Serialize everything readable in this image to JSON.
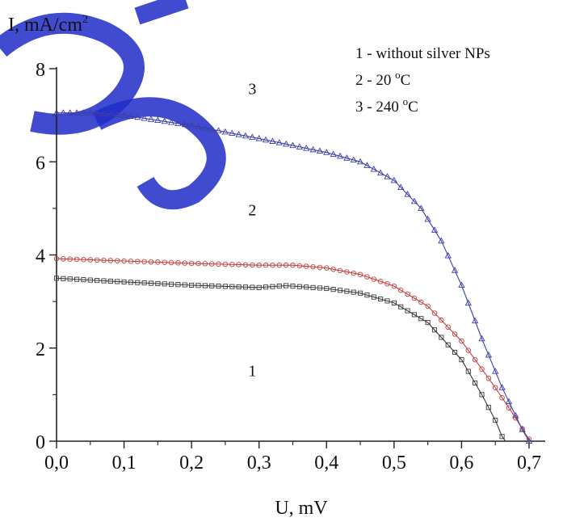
{
  "chart_data": {
    "type": "line",
    "title": "",
    "xlabel": "U, mV",
    "ylabel": "I, mA/cm",
    "ylabel_superscript": "2",
    "xlim": [
      0.0,
      0.7
    ],
    "ylim": [
      0,
      8
    ],
    "x_ticks": [
      "0,0",
      "0,1",
      "0,2",
      "0,3",
      "0,4",
      "0,5",
      "0,6",
      "0,7"
    ],
    "y_ticks": [
      "0",
      "2",
      "4",
      "6",
      "8"
    ],
    "grid": false,
    "legend": {
      "placement": "top-right",
      "entries": [
        {
          "text": "1 - without silver NPs"
        },
        {
          "text": "2 - 20 ",
          "sup": "o",
          "tail": "C"
        },
        {
          "text": "3 - 240 ",
          "sup": "o",
          "tail": "C"
        }
      ]
    },
    "series": [
      {
        "name": "1",
        "color": "#3a3a3a",
        "marker": "square",
        "label_at": [
          0.29,
          1.4
        ],
        "x": [
          0.0,
          0.1,
          0.2,
          0.3,
          0.34,
          0.4,
          0.45,
          0.5,
          0.55,
          0.6,
          0.63,
          0.65,
          0.66,
          0.665
        ],
        "y": [
          3.5,
          3.42,
          3.35,
          3.3,
          3.34,
          3.28,
          3.18,
          2.97,
          2.55,
          1.75,
          1.0,
          0.45,
          0.1,
          0.0
        ]
      },
      {
        "name": "2",
        "color": "#c04040",
        "marker": "circle",
        "label_at": [
          0.29,
          4.85
        ],
        "x": [
          0.0,
          0.1,
          0.2,
          0.3,
          0.35,
          0.4,
          0.45,
          0.5,
          0.55,
          0.6,
          0.65,
          0.68,
          0.695,
          0.702
        ],
        "y": [
          3.92,
          3.87,
          3.82,
          3.78,
          3.78,
          3.72,
          3.58,
          3.33,
          2.9,
          2.15,
          1.15,
          0.5,
          0.15,
          0.0
        ]
      },
      {
        "name": "3",
        "color": "#3b3fa8",
        "marker": "triangle",
        "label_at": [
          0.29,
          7.45
        ],
        "x": [
          0.0,
          0.05,
          0.1,
          0.2,
          0.3,
          0.4,
          0.45,
          0.5,
          0.54,
          0.57,
          0.6,
          0.63,
          0.66,
          0.68,
          0.69,
          0.7
        ],
        "y": [
          7.05,
          7.05,
          7.0,
          6.78,
          6.5,
          6.2,
          6.0,
          5.6,
          5.0,
          4.3,
          3.35,
          2.2,
          1.15,
          0.55,
          0.25,
          0.0
        ]
      }
    ]
  },
  "overlay": {
    "watermark_color": "#1f2bc8"
  }
}
